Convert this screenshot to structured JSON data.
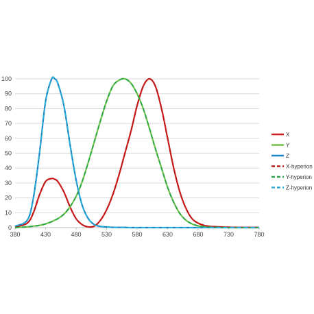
{
  "chart_data": {
    "type": "line",
    "title": "",
    "xlabel": "",
    "ylabel": "",
    "xlim": [
      380,
      780
    ],
    "ylim": [
      0,
      100
    ],
    "x_ticks": [
      "380",
      "430",
      "480",
      "530",
      "580",
      "630",
      "680",
      "730",
      "780"
    ],
    "y_ticks": [
      "0",
      "10",
      "20",
      "30",
      "40",
      "50",
      "60",
      "70",
      "80",
      "90",
      "100"
    ],
    "grid": "horizontal",
    "legend_position": "right",
    "x": [
      380,
      400,
      410,
      420,
      430,
      440,
      445,
      450,
      460,
      470,
      480,
      490,
      500,
      510,
      520,
      530,
      540,
      550,
      560,
      570,
      580,
      590,
      600,
      610,
      620,
      630,
      640,
      650,
      660,
      670,
      680,
      690,
      700,
      720,
      740,
      760,
      780
    ],
    "series": [
      {
        "name": "X",
        "color": "#cc1f1f",
        "style": "solid",
        "values": [
          0.5,
          3,
          10,
          22,
          31,
          33,
          32.5,
          31,
          24,
          14,
          6,
          2,
          0.5,
          1,
          5,
          12,
          22,
          35,
          50,
          65,
          82,
          95,
          100,
          95,
          80,
          60,
          40,
          24,
          13,
          6,
          3,
          1.5,
          0.8,
          0.4,
          0.2,
          0.1,
          0.1
        ]
      },
      {
        "name": "Y",
        "color": "#72c24a",
        "style": "solid",
        "values": [
          0,
          0.5,
          1,
          1.5,
          2.5,
          4,
          5,
          6,
          9,
          14,
          21,
          31,
          44,
          58,
          72,
          85,
          95,
          99,
          100,
          97,
          90,
          80,
          67,
          53,
          40,
          27,
          17,
          9.5,
          5,
          2.5,
          1.2,
          0.6,
          0.3,
          0.1,
          0,
          0,
          0
        ]
      },
      {
        "name": "Z",
        "color": "#1a84c6",
        "style": "solid",
        "values": [
          1,
          5,
          20,
          50,
          85,
          100,
          100,
          97,
          82,
          56,
          32,
          15,
          6,
          2,
          0.8,
          0.4,
          0.2,
          0.1,
          0.1,
          0,
          0,
          0,
          0,
          0,
          0,
          0,
          0,
          0,
          0,
          0,
          0,
          0,
          0,
          0,
          0,
          0,
          0
        ]
      },
      {
        "name": "X-hyperion",
        "color": "#c01818",
        "style": "dashed",
        "values": [
          0.5,
          3,
          10,
          22,
          31,
          33,
          32.5,
          31,
          24,
          14,
          6,
          2,
          0.5,
          1,
          5,
          12,
          22,
          35,
          50,
          65,
          82,
          95,
          100,
          95,
          80,
          60,
          40,
          24,
          13,
          6,
          3,
          1.5,
          0.8,
          0.4,
          0.2,
          0.1,
          0.1
        ]
      },
      {
        "name": "Y-hyperion",
        "color": "#2fa84a",
        "style": "dashed",
        "values": [
          0,
          0.5,
          1,
          1.5,
          2.5,
          4,
          5,
          6,
          9,
          14,
          21,
          31,
          44,
          58,
          72,
          85,
          95,
          99,
          100,
          97,
          90,
          80,
          67,
          53,
          40,
          27,
          17,
          9.5,
          5,
          2.5,
          1.2,
          0.6,
          0.3,
          0.1,
          0,
          0,
          0
        ]
      },
      {
        "name": "Z-hyperion",
        "color": "#2ab0d8",
        "style": "dashed",
        "values": [
          1,
          5,
          20,
          50,
          85,
          100,
          100,
          97,
          82,
          56,
          32,
          15,
          6,
          2,
          0.8,
          0.4,
          0.2,
          0.1,
          0.1,
          0,
          0,
          0,
          0,
          0,
          0,
          0,
          0,
          0,
          0,
          0,
          0,
          0,
          0,
          0,
          0,
          0,
          0
        ]
      }
    ]
  }
}
